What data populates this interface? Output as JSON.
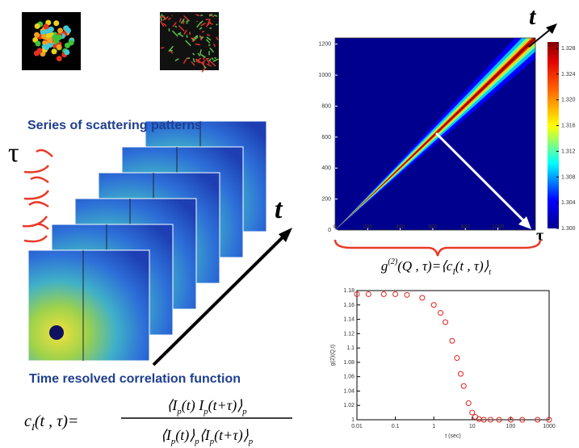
{
  "captions": {
    "series": "Series of scattering patterns",
    "time_resolved": "Time resolved correlation function",
    "tau_left": "τ",
    "t_arrow": "t",
    "t_top": "t",
    "tau_right": "τ"
  },
  "formulas": {
    "g2": [
      "g",
      "(2)",
      "(Q , τ)=⟨c",
      "I",
      "(t , τ)⟩",
      "t"
    ],
    "cI_lhs": [
      "c",
      "I",
      "(t , τ)="
    ],
    "cI_num": [
      "⟨I",
      "p",
      "(t) I",
      "p",
      "(t+τ)⟩",
      "p"
    ],
    "cI_den": [
      "⟨I",
      "p",
      "(t)⟩",
      "p",
      "⟨I",
      "p",
      "(t+τ)⟩",
      "p"
    ]
  },
  "chart_data": [
    {
      "type": "heatmap",
      "xlim": [
        0,
        1230
      ],
      "ylim": [
        0,
        1240
      ],
      "xticks": [
        0,
        200,
        400,
        600,
        800,
        1000
      ],
      "yticks": [
        0,
        200,
        400,
        600,
        800,
        1000,
        1200
      ],
      "colorbar_lim": [
        1.3,
        1.329
      ],
      "colorbar_ticks": [
        {
          "value": 1.3,
          "label": "1.300"
        },
        {
          "value": 1.304,
          "label": "1.304"
        },
        {
          "value": 1.308,
          "label": "1.308"
        },
        {
          "value": 1.312,
          "label": "1.312"
        },
        {
          "value": 1.316,
          "label": "1.316"
        },
        {
          "value": 1.32,
          "label": "1.320"
        },
        {
          "value": 1.324,
          "label": "1.324"
        },
        {
          "value": 1.328,
          "label": "1.328"
        }
      ]
    },
    {
      "type": "scatter",
      "log_x": true,
      "color": "#e0201b",
      "xlabel": "t (sec)",
      "ylabel": "g(2)(Q,t)",
      "x": [
        0.01,
        0.02,
        0.05,
        0.1,
        0.2,
        0.5,
        1,
        1.5,
        2,
        3,
        4,
        5,
        6,
        8,
        10,
        12,
        15,
        20,
        30,
        50,
        100,
        200,
        500,
        1000
      ],
      "values": [
        1.175,
        1.175,
        1.175,
        1.175,
        1.174,
        1.17,
        1.16,
        1.149,
        1.136,
        1.11,
        1.086,
        1.064,
        1.047,
        1.023,
        1.01,
        1.004,
        1.001,
        1,
        1,
        1,
        1,
        1,
        1,
        1
      ],
      "xlim": [
        0.01,
        1000
      ],
      "ylim": [
        1,
        1.18
      ],
      "xticks": [
        0.01,
        0.1,
        1,
        10,
        100,
        1000
      ],
      "yticks": [
        1,
        1.02,
        1.04,
        1.06,
        1.08,
        1.1,
        1.12,
        1.14,
        1.16,
        1.18
      ]
    }
  ]
}
